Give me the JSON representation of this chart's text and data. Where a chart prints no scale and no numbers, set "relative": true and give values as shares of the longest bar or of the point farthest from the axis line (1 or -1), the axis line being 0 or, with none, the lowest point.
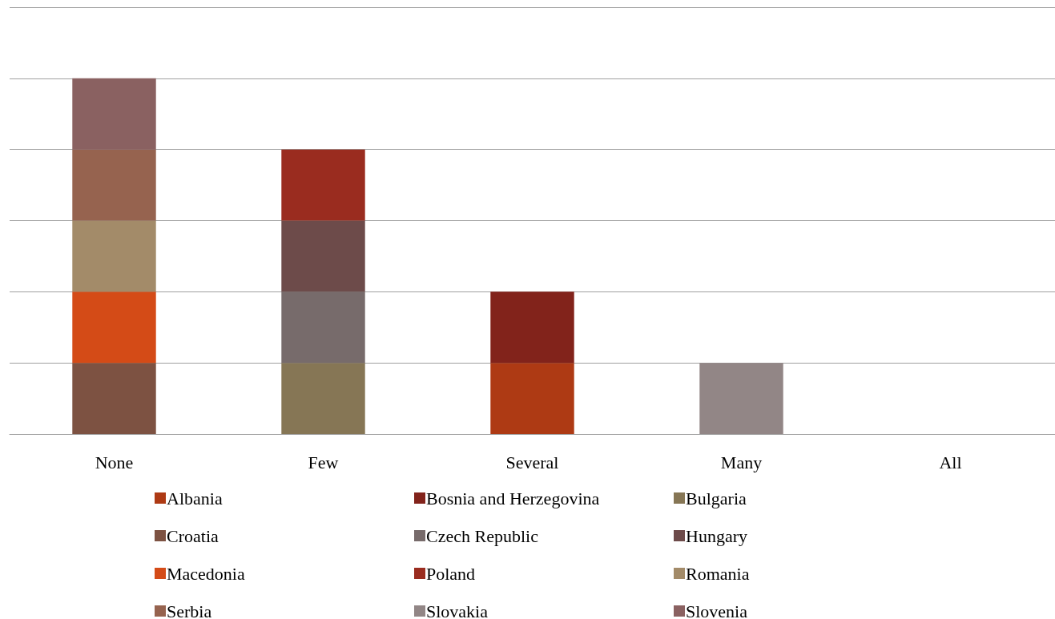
{
  "chart_data": {
    "type": "bar",
    "stacked": true,
    "relative": true,
    "grid": "y",
    "legend": "bottom",
    "categories": [
      "None",
      "Few",
      "Several",
      "Many",
      "All"
    ],
    "series": [
      {
        "name": "Albania",
        "color": "#ae3a14",
        "values": [
          null,
          null,
          0.2,
          null,
          null
        ]
      },
      {
        "name": "Bosnia and Herzegovina",
        "color": "#82231b",
        "values": [
          null,
          null,
          0.2,
          null,
          null
        ]
      },
      {
        "name": "Bulgaria",
        "color": "#867655",
        "values": [
          null,
          0.2,
          null,
          null,
          null
        ]
      },
      {
        "name": "Croatia",
        "color": "#7d5242",
        "values": [
          0.2,
          null,
          null,
          null,
          null
        ]
      },
      {
        "name": "Czech Republic",
        "color": "#776b6b",
        "values": [
          null,
          0.2,
          null,
          null,
          null
        ]
      },
      {
        "name": "Hungary",
        "color": "#6d4b4a",
        "values": [
          null,
          0.2,
          null,
          null,
          null
        ]
      },
      {
        "name": "Macedonia",
        "color": "#d44b17",
        "values": [
          0.2,
          null,
          null,
          null,
          null
        ]
      },
      {
        "name": "Poland",
        "color": "#9a2c1f",
        "values": [
          null,
          0.2,
          null,
          null,
          null
        ]
      },
      {
        "name": "Romania",
        "color": "#a38b69",
        "values": [
          0.2,
          null,
          null,
          null,
          null
        ]
      },
      {
        "name": "Serbia",
        "color": "#96634f",
        "values": [
          0.2,
          null,
          null,
          null,
          null
        ]
      },
      {
        "name": "Slovakia",
        "color": "#928686",
        "values": [
          null,
          null,
          null,
          0.2,
          null
        ]
      },
      {
        "name": "Slovenia",
        "color": "#8a6161",
        "values": [
          0.2,
          null,
          null,
          null,
          null
        ]
      }
    ]
  }
}
